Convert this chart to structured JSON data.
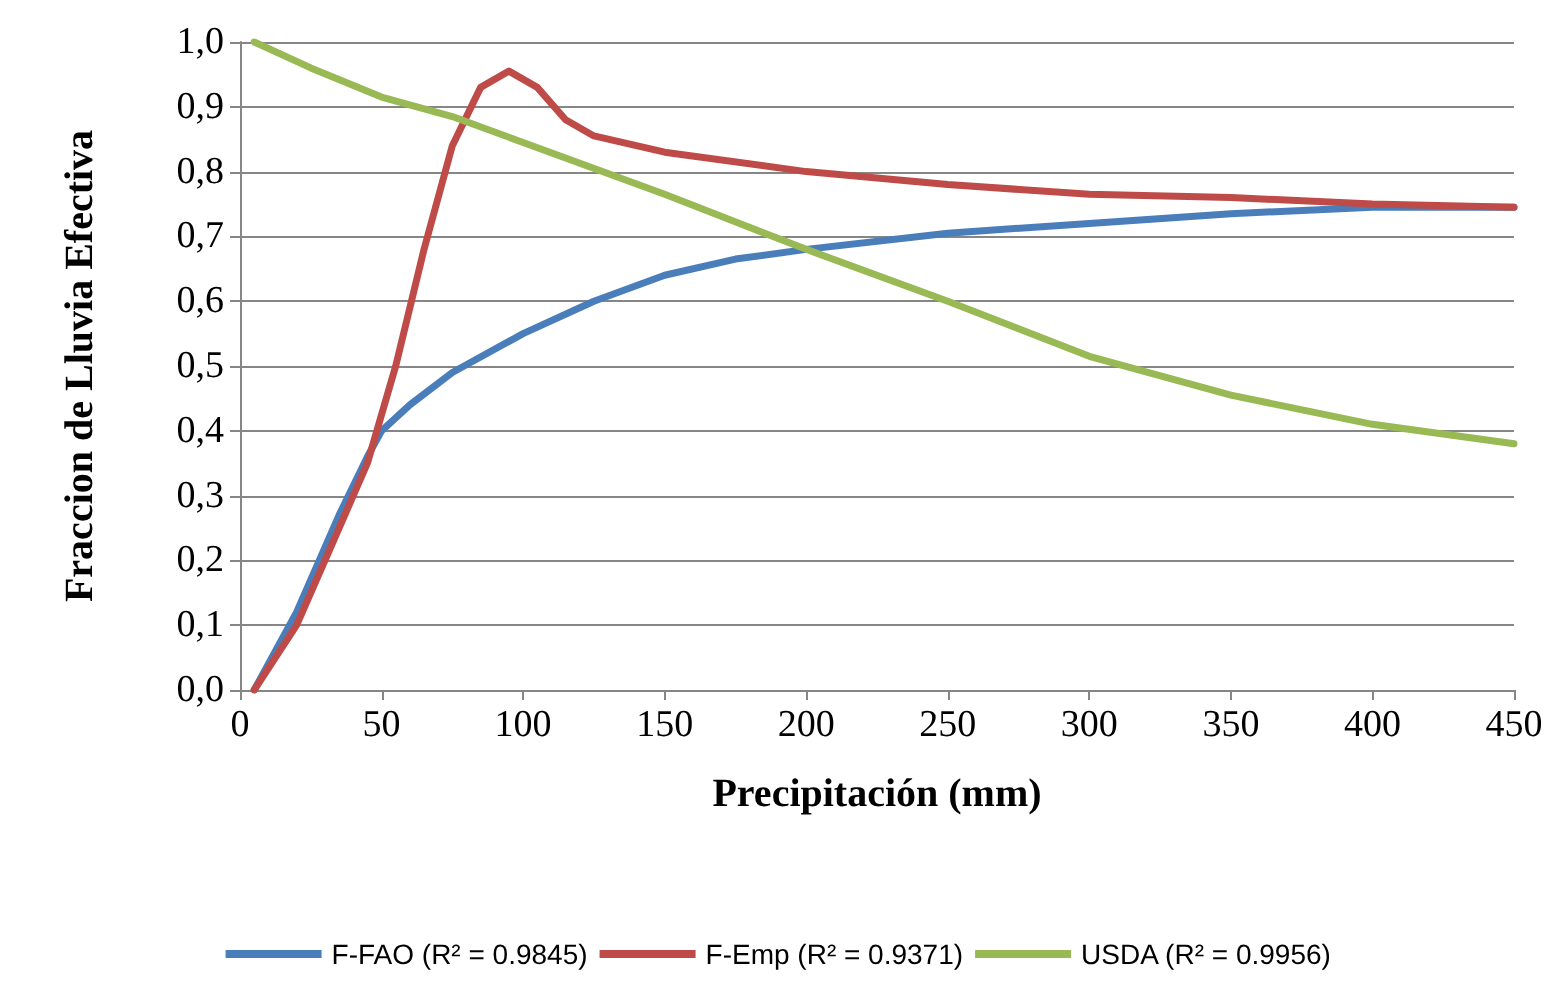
{
  "chart_data": {
    "type": "line",
    "xlabel": "Precipitación (mm)",
    "ylabel": "Fraccion de Lluvia Efectiva",
    "xlim": [
      0,
      450
    ],
    "xticks": [
      0,
      50,
      100,
      150,
      200,
      250,
      300,
      350,
      400,
      450
    ],
    "ylim": [
      0,
      1
    ],
    "yticks": [
      {
        "value": 0,
        "label": "0,0"
      },
      {
        "value": 0.1,
        "label": "0,1"
      },
      {
        "value": 0.2,
        "label": "0,2"
      },
      {
        "value": 0.3,
        "label": "0,3"
      },
      {
        "value": 0.4,
        "label": "0,4"
      },
      {
        "value": 0.5,
        "label": "0,5"
      },
      {
        "value": 0.6,
        "label": "0,6"
      },
      {
        "value": 0.7,
        "label": "0,7"
      },
      {
        "value": 0.8,
        "label": "0,8"
      },
      {
        "value": 0.9,
        "label": "0,9"
      },
      {
        "value": 1,
        "label": "1,0"
      }
    ],
    "grid": "y",
    "legend": "bottom",
    "marker": "none",
    "line_style": "solid",
    "series": [
      {
        "name": "F-FAO (R² = 0.9845)",
        "color": "#4a7ebb",
        "x": [
          5,
          20,
          35,
          45,
          50,
          60,
          75,
          100,
          125,
          150,
          175,
          200,
          250,
          300,
          350,
          400,
          450
        ],
        "values": [
          0,
          0.12,
          0.27,
          0.36,
          0.4,
          0.44,
          0.49,
          0.55,
          0.6,
          0.64,
          0.665,
          0.68,
          0.705,
          0.72,
          0.735,
          0.745,
          0.745
        ]
      },
      {
        "name": "F-Emp (R² = 0.9371)",
        "color": "#be4b48",
        "x": [
          5,
          20,
          35,
          45,
          55,
          65,
          75,
          85,
          95,
          105,
          115,
          125,
          150,
          200,
          250,
          300,
          350,
          400,
          450
        ],
        "values": [
          0,
          0.1,
          0.25,
          0.35,
          0.5,
          0.68,
          0.84,
          0.93,
          0.955,
          0.93,
          0.88,
          0.855,
          0.83,
          0.8,
          0.78,
          0.765,
          0.76,
          0.75,
          0.745
        ]
      },
      {
        "name": "USDA (R² = 0.9956)",
        "color": "#98b954",
        "x": [
          5,
          25,
          50,
          75,
          100,
          150,
          200,
          250,
          300,
          350,
          400,
          450
        ],
        "values": [
          1,
          0.96,
          0.915,
          0.885,
          0.845,
          0.765,
          0.68,
          0.6,
          0.515,
          0.455,
          0.41,
          0.38
        ]
      }
    ]
  }
}
